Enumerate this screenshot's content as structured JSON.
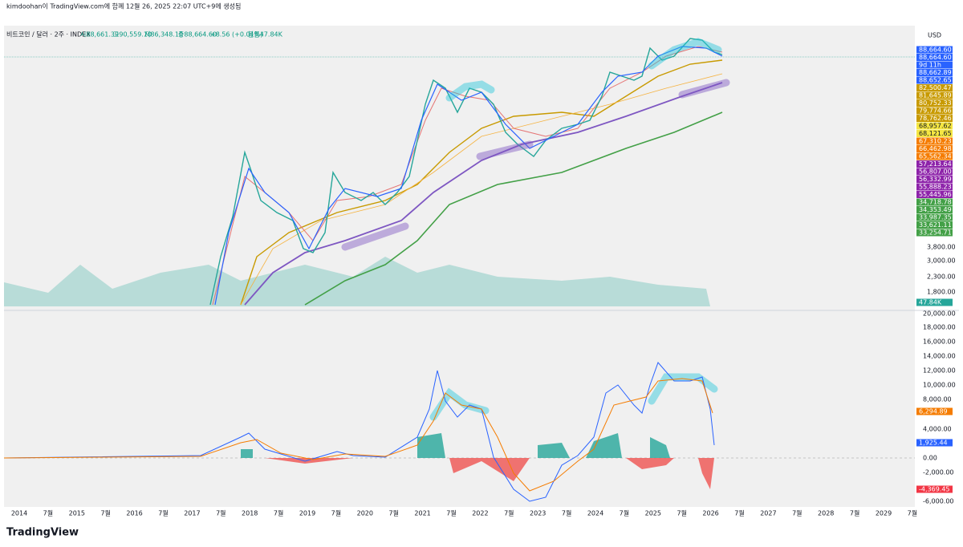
{
  "header": {
    "title": "kimdoohan이 TradingView.com에 함께 12월 26, 2025 22:07 UTC+9에 생성됨"
  },
  "legend": {
    "symbol": "비트코인 / 달러 · 2주 · INDEX",
    "open": "시88,661.39",
    "high": "고90,559.10",
    "low": "저86,348.10",
    "close": "종88,664.60",
    "change": "+8.56 (+0.01%)",
    "volume": "볼륨47.84K"
  },
  "currency": "USD",
  "price_labels": [
    {
      "text": "88,664.60",
      "color": "#2962ff"
    },
    {
      "text": "88,664.60",
      "color": "#2962ff"
    },
    {
      "text": "9d 11h",
      "color": "#2962ff"
    },
    {
      "text": "88,662.89",
      "color": "#2962ff"
    },
    {
      "text": "88,652.65",
      "color": "#2962ff"
    },
    {
      "text": "82,500.47",
      "color": "#c89a00"
    },
    {
      "text": "81,645.89",
      "color": "#c89a00"
    },
    {
      "text": "80,752.33",
      "color": "#c89a00"
    },
    {
      "text": "79,774.66",
      "color": "#c89a00"
    },
    {
      "text": "78,762.46",
      "color": "#c89a00"
    },
    {
      "text": "68,957.62",
      "color": "#f5e642"
    },
    {
      "text": "68,121.65",
      "color": "#f5e642"
    },
    {
      "text": "67,310.23",
      "color": "#f57c00"
    },
    {
      "text": "66,462.98",
      "color": "#f57c00"
    },
    {
      "text": "65,562.34",
      "color": "#f57c00"
    },
    {
      "text": "57,213.64",
      "color": "#8e24aa"
    },
    {
      "text": "56,807.00",
      "color": "#8e24aa"
    },
    {
      "text": "56,332.99",
      "color": "#8e24aa"
    },
    {
      "text": "55,888.23",
      "color": "#8e24aa"
    },
    {
      "text": "55,445.96",
      "color": "#8e24aa"
    },
    {
      "text": "34,718.78",
      "color": "#43a047"
    },
    {
      "text": "34,353.49",
      "color": "#43a047"
    },
    {
      "text": "33,987.35",
      "color": "#43a047"
    },
    {
      "text": "33,621.11",
      "color": "#43a047"
    },
    {
      "text": "33,254.71",
      "color": "#43a047"
    }
  ],
  "volume_axis": [
    "3,800.00",
    "3,000.00",
    "2,300.00",
    "1,800.00"
  ],
  "volume_label": {
    "text": "47.84K",
    "color": "#26a69a"
  },
  "macd_axis": [
    "20,000.00",
    "18,000.00",
    "16,000.00",
    "14,000.00",
    "12,000.00",
    "10,000.00",
    "8,000.00",
    "4,000.00",
    "0.00",
    "-2,000.00",
    "-6,000.00"
  ],
  "macd_labels": [
    {
      "text": "6,294.89",
      "color": "#f57c00"
    },
    {
      "text": "1,925.44",
      "color": "#2962ff"
    },
    {
      "text": "-4,369.45",
      "color": "#f23645"
    }
  ],
  "time_axis": [
    "2014",
    "7월",
    "2015",
    "7월",
    "2016",
    "7월",
    "2017",
    "7월",
    "2018",
    "7월",
    "2019",
    "7월",
    "2020",
    "7월",
    "2021",
    "7월",
    "2022",
    "7월",
    "2023",
    "7월",
    "2024",
    "7월",
    "2025",
    "7월",
    "2026",
    "7월",
    "2027",
    "7월",
    "2028",
    "7월",
    "2029",
    "7월"
  ],
  "logo": "TradingView"
}
